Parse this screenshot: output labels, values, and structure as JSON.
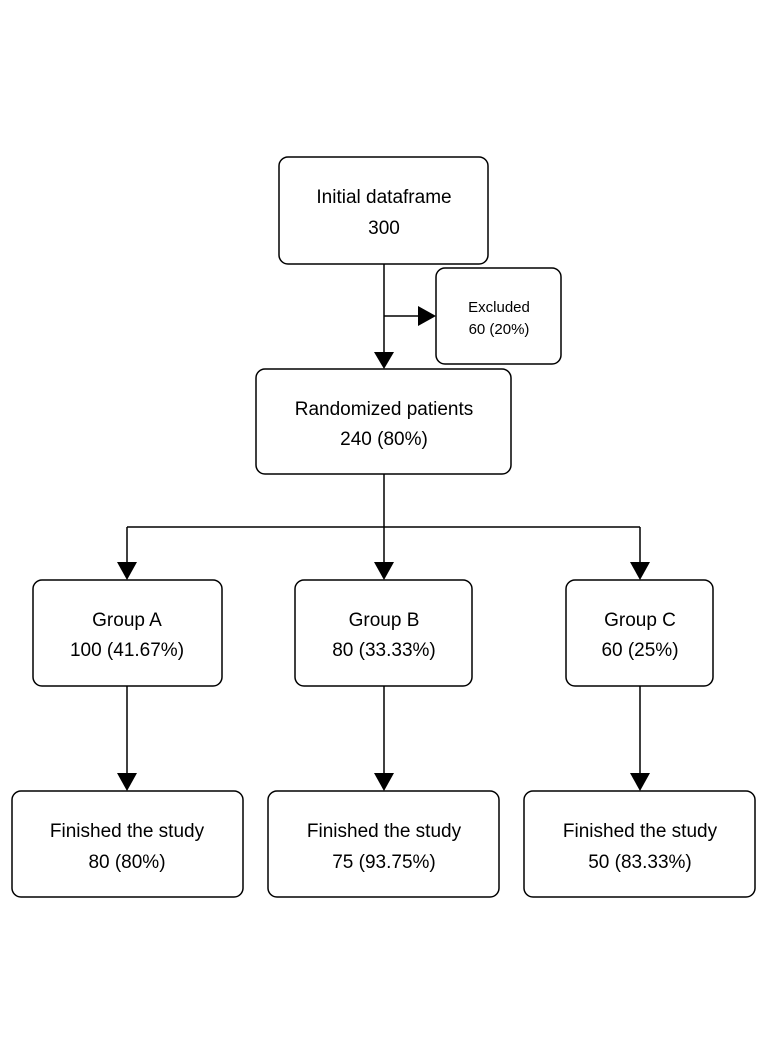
{
  "nodes": {
    "initial": {
      "title": "Initial dataframe",
      "value": "300"
    },
    "excluded": {
      "title": "Excluded",
      "value": "60 (20%)"
    },
    "randomized": {
      "title": "Randomized patients",
      "value": "240 (80%)"
    },
    "group_a": {
      "title": "Group A",
      "value": "100 (41.67%)"
    },
    "group_b": {
      "title": "Group B",
      "value": "80 (33.33%)"
    },
    "group_c": {
      "title": "Group C",
      "value": "60 (25%)"
    },
    "finished_a": {
      "title": "Finished the study",
      "value": "80 (80%)"
    },
    "finished_b": {
      "title": "Finished the study",
      "value": "75 (93.75%)"
    },
    "finished_c": {
      "title": "Finished the study",
      "value": "50 (83.33%)"
    }
  },
  "edges": [
    {
      "from": "initial",
      "to": "randomized"
    },
    {
      "from": "initial",
      "to": "excluded"
    },
    {
      "from": "randomized",
      "to": "group_a"
    },
    {
      "from": "randomized",
      "to": "group_b"
    },
    {
      "from": "randomized",
      "to": "group_c"
    },
    {
      "from": "group_a",
      "to": "finished_a"
    },
    {
      "from": "group_b",
      "to": "finished_b"
    },
    {
      "from": "group_c",
      "to": "finished_c"
    }
  ],
  "colors": {
    "stroke": "#000000",
    "fill": "#ffffff",
    "text": "#000000"
  }
}
